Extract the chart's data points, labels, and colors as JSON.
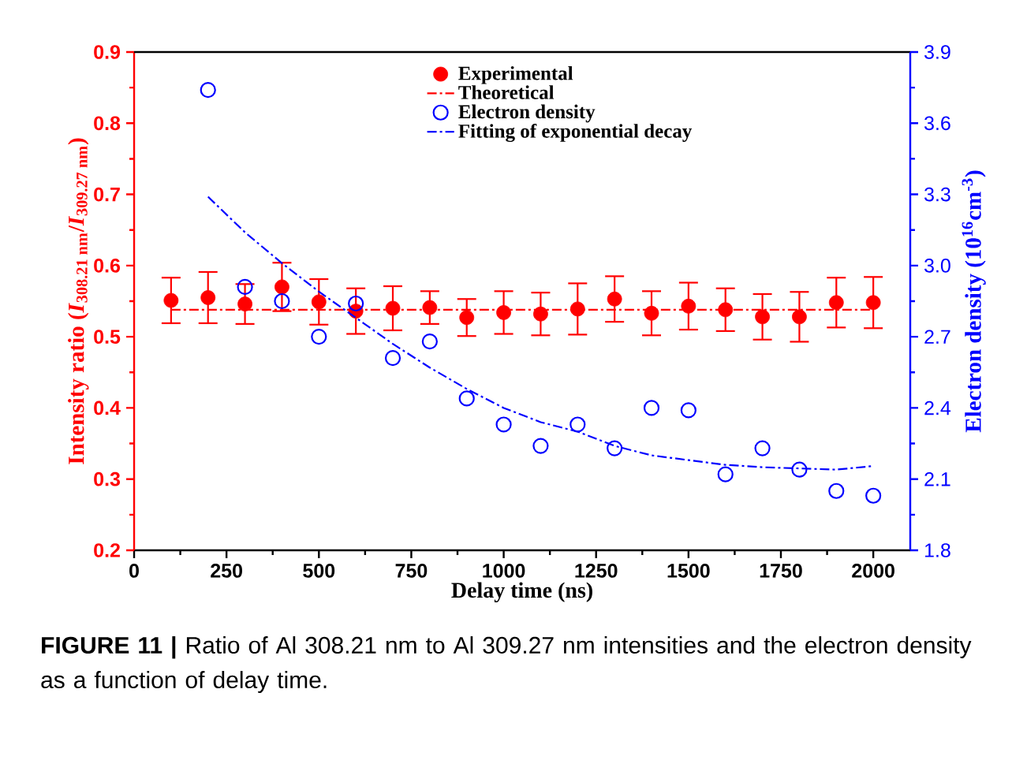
{
  "chart_data": {
    "type": "scatter",
    "xlabel": "Delay time (ns)",
    "ylabel": "Intensity ratio (*I*$_{308.21 nm}$/*I*$_{309.27 nm}$)",
    "y2label": "Electron density (10$^{16}$cm$^{-3}$)",
    "annotations": [
      "**FIGURE 11 |** Ratio of Al 308.21 nm to Al 309.27 nm intensities and the electron density as a function of delay time."
    ],
    "xlim": [
      0,
      2100
    ],
    "xticks": [
      0,
      250,
      500,
      750,
      1000,
      1250,
      1500,
      1750,
      2000
    ],
    "ylim": [
      0.2,
      0.9
    ],
    "yticks": [
      0.2,
      0.3,
      0.4,
      0.5,
      0.6,
      0.7,
      0.8,
      0.9
    ],
    "y2lim": [
      1.8,
      3.9
    ],
    "y2ticks": [
      1.8,
      2.1,
      2.4,
      2.7,
      {
        "value": 3.0,
        "label": "3.0"
      },
      3.3,
      3.6,
      3.9
    ],
    "legend": "top",
    "x": [
      100,
      200,
      300,
      400,
      500,
      600,
      700,
      800,
      900,
      1000,
      1100,
      1200,
      1300,
      1400,
      1500,
      1600,
      1700,
      1800,
      1900,
      2000
    ],
    "series": [
      {
        "name": "Experimental",
        "color": "#ff0000",
        "marker": "circle",
        "values": [
          0.551,
          0.555,
          0.546,
          0.57,
          0.549,
          0.536,
          0.54,
          0.541,
          0.527,
          0.534,
          0.532,
          0.539,
          0.553,
          0.533,
          0.543,
          0.538,
          0.528,
          0.528,
          0.548,
          0.548
        ],
        "errors": [
          0.032,
          0.036,
          0.028,
          0.034,
          0.032,
          0.032,
          0.031,
          0.023,
          0.026,
          0.03,
          0.03,
          0.036,
          0.032,
          0.031,
          0.033,
          0.03,
          0.032,
          0.035,
          0.035,
          0.036
        ]
      },
      {
        "name": "Theoretical",
        "type": "line",
        "color": "#ff0000",
        "line_style": "dashdot",
        "x": [
          100,
          2000
        ],
        "values": [
          0.538,
          0.538
        ]
      },
      {
        "name": "Electron density",
        "type": "scatter",
        "axis": "y2",
        "color": "#0000ff",
        "marker": "circle",
        "x": [
          200,
          300,
          400,
          500,
          600,
          700,
          800,
          900,
          1000,
          1100,
          1200,
          1300,
          1400,
          1500,
          1600,
          1700,
          1800,
          1900,
          2000
        ],
        "values": [
          3.74,
          2.91,
          2.85,
          2.7,
          2.84,
          2.61,
          2.68,
          2.44,
          2.33,
          2.24,
          2.33,
          2.23,
          2.4,
          2.39,
          2.12,
          2.23,
          2.14,
          2.05,
          2.03
        ]
      },
      {
        "name": "Fitting of exponential decay",
        "type": "line",
        "axis": "y2",
        "color": "#0000ff",
        "line_style": "dashdot",
        "x": [
          200,
          300,
          400,
          500,
          600,
          700,
          800,
          900,
          1000,
          1100,
          1200,
          1300,
          1400,
          1500,
          1600,
          1700,
          1800,
          1900,
          2000
        ],
        "values": [
          3.29,
          3.14,
          3.01,
          2.89,
          2.78,
          2.67,
          2.57,
          2.48,
          2.4,
          2.34,
          2.3,
          2.24,
          2.2,
          2.18,
          2.16,
          2.15,
          2.145,
          2.14,
          2.155
        ]
      }
    ]
  }
}
